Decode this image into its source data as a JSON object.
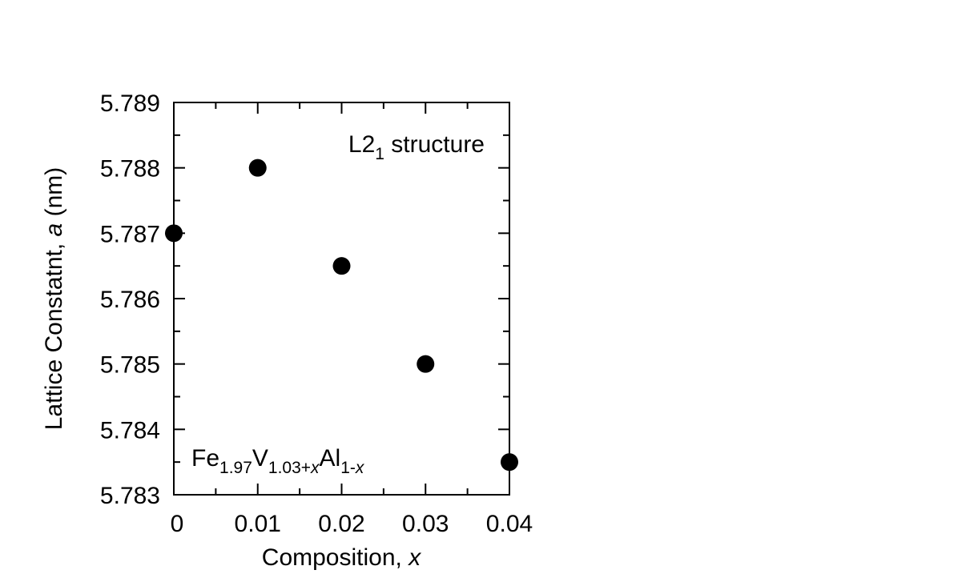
{
  "chart_data": {
    "type": "scatter",
    "title": "",
    "xlabel_main": "Composition, ",
    "xlabel_var": "x",
    "ylabel_main": "Lattice Constatnt, ",
    "ylabel_var": "a",
    "ylabel_unit": " (nm)",
    "xlim": [
      0,
      0.04
    ],
    "ylim": [
      5.783,
      5.789
    ],
    "x_ticks": [
      0,
      0.01,
      0.02,
      0.03,
      0.04
    ],
    "x_tick_labels": [
      "0",
      "0.01",
      "0.02",
      "0.03",
      "0.04"
    ],
    "y_ticks": [
      5.783,
      5.784,
      5.785,
      5.786,
      5.787,
      5.788,
      5.789
    ],
    "y_tick_labels": [
      "5.783",
      "5.784",
      "5.785",
      "5.786",
      "5.787",
      "5.788",
      "5.789"
    ],
    "grid": false,
    "series": [
      {
        "x": [
          0,
          0.01,
          0.02,
          0.03,
          0.04
        ],
        "y": [
          5.787,
          5.788,
          5.7865,
          5.785,
          5.7835
        ],
        "color": "#000000",
        "marker": "filled-circle"
      }
    ],
    "annotations": {
      "structure": {
        "base": "L2",
        "sub": "1",
        "rest": " structure"
      },
      "formula": {
        "fe": "Fe",
        "fe_sub": "1.97",
        "v": "V",
        "v_sub": "1.03+",
        "v_sub_var": "x",
        "al": "Al",
        "al_sub": "1-",
        "al_sub_var": "x"
      }
    }
  }
}
